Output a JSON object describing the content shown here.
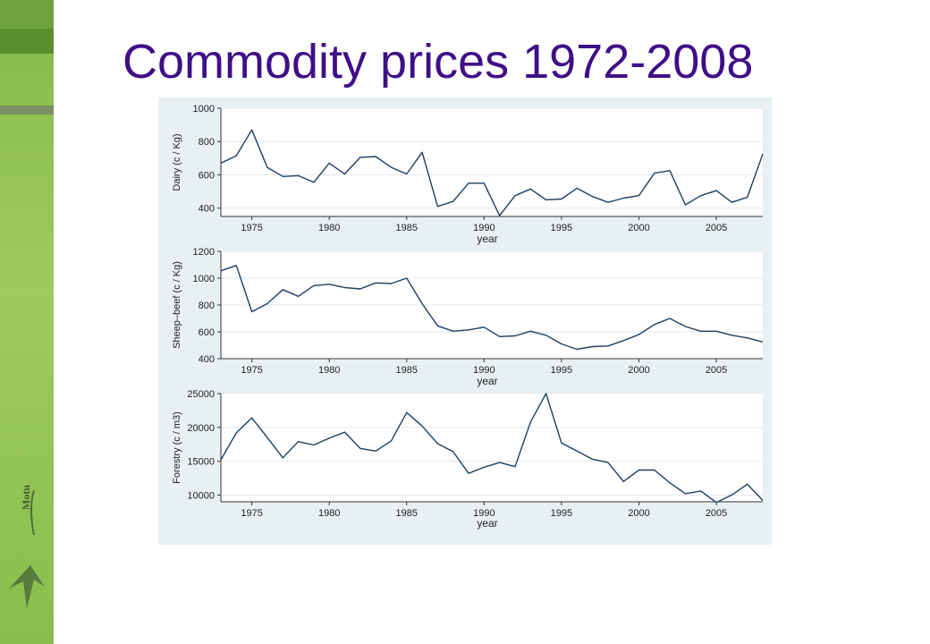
{
  "slide": {
    "title": "Commodity prices 1972-2008",
    "logo_text": "Motu"
  },
  "colors": {
    "title": "#3f0f87",
    "line": "#1f3f5f",
    "panel_bg": "#ffffff",
    "frame_bg": "#e9f0f3",
    "grid": "#e3e9ed"
  },
  "chart_data": [
    {
      "type": "line",
      "ylabel": "Dairy (c / Kg)",
      "xlabel": "year",
      "xlim": [
        1973,
        2008
      ],
      "ylim": [
        350,
        1000
      ],
      "yticks": [
        400,
        600,
        800,
        1000
      ],
      "xticks": [
        1975,
        1980,
        1985,
        1990,
        1995,
        2000,
        2005
      ],
      "x": [
        1973,
        1974,
        1975,
        1976,
        1977,
        1978,
        1979,
        1980,
        1981,
        1982,
        1983,
        1984,
        1985,
        1986,
        1987,
        1988,
        1989,
        1990,
        1991,
        1992,
        1993,
        1994,
        1995,
        1996,
        1997,
        1998,
        1999,
        2000,
        2001,
        2002,
        2003,
        2004,
        2005,
        2006,
        2007,
        2008
      ],
      "values": [
        670,
        715,
        870,
        645,
        590,
        595,
        555,
        670,
        605,
        705,
        710,
        645,
        605,
        735,
        410,
        440,
        550,
        550,
        355,
        475,
        515,
        450,
        455,
        520,
        470,
        435,
        460,
        475,
        610,
        625,
        420,
        475,
        505,
        435,
        465,
        725
      ]
    },
    {
      "type": "line",
      "ylabel": "Sheep–beef (c / Kg)",
      "xlabel": "year",
      "xlim": [
        1973,
        2008
      ],
      "ylim": [
        400,
        1200
      ],
      "yticks": [
        400,
        600,
        800,
        1000,
        1200
      ],
      "xticks": [
        1975,
        1980,
        1985,
        1990,
        1995,
        2000,
        2005
      ],
      "x": [
        1973,
        1974,
        1975,
        1976,
        1977,
        1978,
        1979,
        1980,
        1981,
        1982,
        1983,
        1984,
        1985,
        1986,
        1987,
        1988,
        1989,
        1990,
        1991,
        1992,
        1993,
        1994,
        1995,
        1996,
        1997,
        1998,
        1999,
        2000,
        2001,
        2002,
        2003,
        2004,
        2005,
        2006,
        2007,
        2008
      ],
      "values": [
        1055,
        1095,
        750,
        810,
        915,
        865,
        945,
        955,
        930,
        920,
        965,
        960,
        1000,
        810,
        645,
        605,
        615,
        635,
        565,
        570,
        605,
        575,
        510,
        470,
        490,
        495,
        535,
        580,
        655,
        700,
        640,
        605,
        605,
        575,
        555,
        525
      ]
    },
    {
      "type": "line",
      "ylabel": "Forestry (c / m3)",
      "xlabel": "year",
      "xlim": [
        1973,
        2008
      ],
      "ylim": [
        9000,
        25000
      ],
      "yticks": [
        10000,
        15000,
        20000,
        25000
      ],
      "xticks": [
        1975,
        1980,
        1985,
        1990,
        1995,
        2000,
        2005
      ],
      "x": [
        1973,
        1974,
        1975,
        1976,
        1977,
        1978,
        1979,
        1980,
        1981,
        1982,
        1983,
        1984,
        1985,
        1986,
        1987,
        1988,
        1989,
        1990,
        1991,
        1992,
        1993,
        1994,
        1995,
        1996,
        1997,
        1998,
        1999,
        2000,
        2001,
        2002,
        2003,
        2004,
        2005,
        2006,
        2007,
        2008
      ],
      "values": [
        15200,
        19200,
        21400,
        18500,
        15500,
        17900,
        17400,
        18400,
        19300,
        16900,
        16500,
        18000,
        22200,
        20200,
        17600,
        16400,
        13200,
        14100,
        14800,
        14200,
        20800,
        25000,
        17700,
        16500,
        15300,
        14800,
        12000,
        13700,
        13700,
        11800,
        10200,
        10600,
        8900,
        10000,
        11600,
        9200
      ]
    }
  ]
}
